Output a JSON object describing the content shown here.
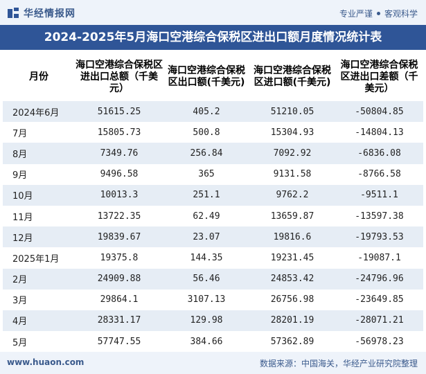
{
  "header": {
    "brand": "华经情报网",
    "tagline_left": "专业严谨",
    "tagline_right": "客观科学"
  },
  "title": "2024-2025年5月海口空港综合保税区进出口额月度情况统计表",
  "table": {
    "columns": [
      "月份",
      "海口空港综合保税区进出口总额（千美元）",
      "海口空港综合保税区出口额(千美元)",
      "海口空港综合保税区进口额(千美元)",
      "海口空港综合保税区进出口差额（千美元）"
    ],
    "rows": [
      [
        "2024年6月",
        "51615.25",
        "405.2",
        "51210.05",
        "-50804.85"
      ],
      [
        "7月",
        "15805.73",
        "500.8",
        "15304.93",
        "-14804.13"
      ],
      [
        "8月",
        "7349.76",
        "256.84",
        "7092.92",
        "-6836.08"
      ],
      [
        "9月",
        "9496.58",
        "365",
        "9131.58",
        "-8766.58"
      ],
      [
        "10月",
        "10013.3",
        "251.1",
        "9762.2",
        "-9511.1"
      ],
      [
        "11月",
        "13722.35",
        "62.49",
        "13659.87",
        "-13597.38"
      ],
      [
        "12月",
        "19839.67",
        "23.07",
        "19816.6",
        "-19793.53"
      ],
      [
        "2025年1月",
        "19375.8",
        "144.35",
        "19231.45",
        "-19087.1"
      ],
      [
        "2月",
        "24909.88",
        "56.46",
        "24853.42",
        "-24796.96"
      ],
      [
        "3月",
        "29864.1",
        "3107.13",
        "26756.98",
        "-23649.85"
      ],
      [
        "4月",
        "28331.17",
        "129.98",
        "28201.19",
        "-28071.21"
      ],
      [
        "5月",
        "57747.55",
        "384.66",
        "57362.89",
        "-56978.23"
      ]
    ]
  },
  "footer": {
    "site": "www.huaon.com",
    "source": "数据来源：中国海关，华经产业研究院整理"
  }
}
